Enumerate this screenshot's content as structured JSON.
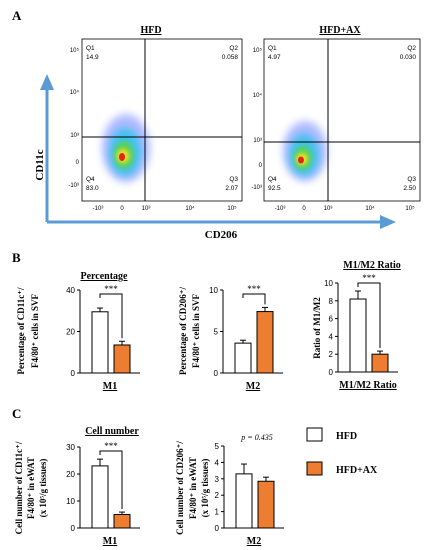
{
  "colors": {
    "axis_arrow": "#5b9bd5",
    "hfd_fill": "#ffffff",
    "hfdax_fill": "#ed7d31",
    "bar_edge": "#000000",
    "density_low": "#1f3cff",
    "density_mid": "#21c4e8",
    "density_mid2": "#5bd34b",
    "density_high": "#f7e21e",
    "density_peak": "#e8231c"
  },
  "panel_labels": {
    "a": "A",
    "b": "B",
    "c": "C"
  },
  "flow": {
    "x_axis_label": "CD206",
    "y_axis_label": "CD11c",
    "y_ticks": [
      "10⁵",
      "10⁴",
      "10³",
      "0",
      "-10³"
    ],
    "x_ticks": [
      "-10³",
      "0",
      "10³",
      "10⁴",
      "10⁵"
    ],
    "plots": [
      {
        "title": "HFD",
        "q1_name": "Q1",
        "q1": "14.9",
        "q2_name": "Q2",
        "q2": "0.058",
        "q3_name": "Q3",
        "q3": "2.07",
        "q4_name": "Q4",
        "q4": "83.0"
      },
      {
        "title": "HFD+AX",
        "q1_name": "Q1",
        "q1": "4.97",
        "q2_name": "Q2",
        "q2": "0.030",
        "q3_name": "Q3",
        "q3": "2.50",
        "q4_name": "Q4",
        "q4": "92.5"
      }
    ]
  },
  "legend": {
    "items": [
      "HFD",
      "HFD+AX"
    ]
  },
  "chart_data": [
    {
      "type": "bar",
      "title": "Percentage",
      "ylabel_line1": "Percentage of CD11c⁺/",
      "ylabel_line2": "F4/80⁺ cells in SVF",
      "categories": [
        "M1"
      ],
      "ylim": [
        0,
        40
      ],
      "yticks": [
        "0",
        "20",
        "40"
      ],
      "series": [
        {
          "name": "HFD",
          "values": [
            29.5
          ],
          "errors": [
            1.8
          ]
        },
        {
          "name": "HFD+AX",
          "values": [
            13.5
          ],
          "errors": [
            1.8
          ]
        }
      ],
      "significance": "***"
    },
    {
      "type": "bar",
      "title": "",
      "ylabel_line1": "Percentage of CD206⁺/",
      "ylabel_line2": "F4/80⁺ cells in SVF",
      "categories": [
        "M2"
      ],
      "ylim": [
        0,
        10
      ],
      "yticks": [
        "0",
        "5",
        "10"
      ],
      "series": [
        {
          "name": "HFD",
          "values": [
            3.6
          ],
          "errors": [
            0.35
          ]
        },
        {
          "name": "HFD+AX",
          "values": [
            7.4
          ],
          "errors": [
            0.5
          ]
        }
      ],
      "significance": "***"
    },
    {
      "type": "bar",
      "title": "M1/M2 Ratio",
      "ylabel_line1": "Ratio of M1/M2",
      "ylabel_line2": "",
      "categories": [
        "M1/M2 Ratio"
      ],
      "ylim": [
        0,
        10
      ],
      "yticks": [
        "0",
        "2",
        "4",
        "6",
        "8",
        "10"
      ],
      "series": [
        {
          "name": "HFD",
          "values": [
            8.2
          ],
          "errors": [
            0.9
          ]
        },
        {
          "name": "HFD+AX",
          "values": [
            2.0
          ],
          "errors": [
            0.35
          ]
        }
      ],
      "significance": "***"
    },
    {
      "type": "bar",
      "title": "Cell number",
      "ylabel_line1": "Cell number of CD11c⁺/",
      "ylabel_line2": "F4/80⁺ in eWAT",
      "ylabel_line3": "(x 10⁵/g tissues)",
      "categories": [
        "M1"
      ],
      "ylim": [
        0,
        30
      ],
      "yticks": [
        "0",
        "10",
        "20",
        "30"
      ],
      "series": [
        {
          "name": "HFD",
          "values": [
            23.0
          ],
          "errors": [
            2.5
          ]
        },
        {
          "name": "HFD+AX",
          "values": [
            5.0
          ],
          "errors": [
            0.9
          ]
        }
      ],
      "significance": "***"
    },
    {
      "type": "bar",
      "title": "",
      "ylabel_line1": "Cell number of CD206⁺/",
      "ylabel_line2": "F4/80⁺ in eWAT",
      "ylabel_line3": "(x 10⁵/g tissues)",
      "categories": [
        "M2"
      ],
      "ylim": [
        0,
        5
      ],
      "yticks": [
        "0",
        "1",
        "2",
        "3",
        "4",
        "5"
      ],
      "series": [
        {
          "name": "HFD",
          "values": [
            3.3
          ],
          "errors": [
            0.6
          ]
        },
        {
          "name": "HFD+AX",
          "values": [
            2.85
          ],
          "errors": [
            0.25
          ]
        }
      ],
      "significance": "p = 0.435"
    }
  ]
}
